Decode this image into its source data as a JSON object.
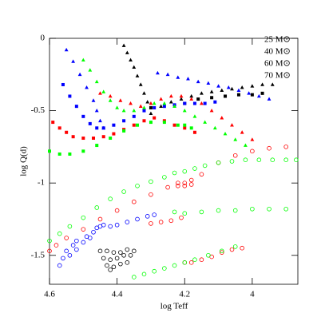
{
  "chart_data": {
    "type": "scatter",
    "xlabel": "log Teff",
    "ylabel": "log Q(d)",
    "xlim": [
      4.6,
      3.865
    ],
    "ylim": [
      -1.7,
      0
    ],
    "xticks": [
      4.6,
      4.4,
      4.2,
      4
    ],
    "yticks": [
      0,
      -0.5,
      -1,
      -1.5
    ],
    "legend": "upper right",
    "series": [
      {
        "name": "25 M⊙",
        "color": "#000000",
        "markers": {
          "triangle": {
            "x": [
              4.38,
              4.37,
              4.36,
              4.35,
              4.34,
              4.33,
              4.32,
              4.31,
              4.3,
              4.27,
              4.24,
              4.21,
              4.18,
              4.15,
              4.12,
              4.09,
              4.06,
              4.03,
              4.0,
              3.97,
              3.94
            ],
            "y": [
              -0.05,
              -0.1,
              -0.15,
              -0.2,
              -0.26,
              -0.32,
              -0.38,
              -0.44,
              -0.52,
              -0.47,
              -0.44,
              -0.42,
              -0.4,
              -0.38,
              -0.37,
              -0.36,
              -0.35,
              -0.34,
              -0.33,
              -0.32,
              -0.32
            ]
          },
          "square": {
            "x": [
              4.3,
              4.2,
              4.16,
              4.12,
              4.08,
              4.04,
              4.0,
              3.97
            ],
            "y": [
              -0.48,
              -0.45,
              -0.42,
              -0.41,
              -0.4,
              -0.39,
              -0.39,
              -0.38
            ]
          },
          "circle": {
            "x": [
              4.45,
              4.43,
              4.41,
              4.39,
              4.37,
              4.35,
              4.44,
              4.42,
              4.4,
              4.38,
              4.36,
              4.43,
              4.41,
              4.39,
              4.37,
              4.42
            ],
            "y": [
              -1.47,
              -1.47,
              -1.48,
              -1.48,
              -1.46,
              -1.47,
              -1.52,
              -1.53,
              -1.52,
              -1.5,
              -1.5,
              -1.57,
              -1.58,
              -1.56,
              -1.55,
              -1.6
            ]
          }
        }
      },
      {
        "name": "40 M⊙",
        "color": "#0000ff",
        "markers": {
          "triangle": {
            "x": [
              4.55,
              4.53,
              4.51,
              4.49,
              4.47,
              4.46,
              4.45,
              4.44,
              4.28,
              4.25,
              4.22,
              4.19,
              4.16,
              4.13,
              4.1,
              4.07,
              4.04,
              4.01,
              3.98,
              3.95
            ],
            "y": [
              -0.08,
              -0.16,
              -0.25,
              -0.34,
              -0.43,
              -0.5,
              -0.57,
              -0.62,
              -0.24,
              -0.25,
              -0.27,
              -0.28,
              -0.3,
              -0.31,
              -0.33,
              -0.34,
              -0.36,
              -0.38,
              -0.4,
              -0.42
            ]
          },
          "square": {
            "x": [
              4.56,
              4.54,
              4.52,
              4.5,
              4.48,
              4.46,
              4.44,
              4.41,
              4.38,
              4.35,
              4.32,
              4.29,
              4.26,
              4.23,
              4.2,
              4.17,
              4.14,
              4.11
            ],
            "y": [
              -0.32,
              -0.4,
              -0.47,
              -0.54,
              -0.59,
              -0.62,
              -0.62,
              -0.6,
              -0.57,
              -0.54,
              -0.5,
              -0.48,
              -0.47,
              -0.46,
              -0.45,
              -0.45,
              -0.45,
              -0.44
            ]
          },
          "circle": {
            "x": [
              4.57,
              4.56,
              4.55,
              4.53,
              4.52,
              4.54,
              4.52,
              4.5,
              4.49,
              4.47,
              4.46,
              4.48,
              4.45,
              4.44,
              4.42,
              4.4,
              4.37,
              4.34,
              4.31,
              4.29
            ],
            "y": [
              -1.57,
              -1.52,
              -1.47,
              -1.43,
              -1.4,
              -1.5,
              -1.46,
              -1.41,
              -1.37,
              -1.34,
              -1.31,
              -1.38,
              -1.3,
              -1.29,
              -1.3,
              -1.29,
              -1.27,
              -1.25,
              -1.23,
              -1.22
            ]
          }
        }
      },
      {
        "name": "60 M⊙",
        "color": "#ff0000",
        "markers": {
          "triangle": {
            "x": [
              4.45,
              4.42,
              4.39,
              4.36,
              4.33,
              4.3,
              4.27,
              4.24,
              4.21,
              4.18,
              4.15,
              4.12,
              4.09,
              4.06,
              4.03,
              4.0
            ],
            "y": [
              -0.38,
              -0.4,
              -0.43,
              -0.45,
              -0.47,
              -0.45,
              -0.42,
              -0.4,
              -0.4,
              -0.42,
              -0.45,
              -0.5,
              -0.55,
              -0.6,
              -0.65,
              -0.7
            ]
          },
          "square": {
            "x": [
              4.59,
              4.57,
              4.55,
              4.53,
              4.5,
              4.47,
              4.44,
              4.41,
              4.38,
              4.35,
              4.32,
              4.29,
              4.26,
              4.23,
              4.2,
              4.17
            ],
            "y": [
              -0.58,
              -0.62,
              -0.65,
              -0.68,
              -0.69,
              -0.69,
              -0.68,
              -0.66,
              -0.63,
              -0.6,
              -0.57,
              -0.55,
              -0.57,
              -0.6,
              -0.62,
              -0.65
            ]
          },
          "circle": {
            "x": [
              4.6,
              4.58,
              4.55,
              4.5,
              4.45,
              4.4,
              4.35,
              4.3,
              4.25,
              4.22,
              4.2,
              4.18,
              4.15,
              4.1,
              4.05,
              4.0,
              3.95,
              3.9,
              4.22,
              4.2,
              4.18,
              4.3,
              4.27,
              4.24,
              4.21,
              4.2,
              4.18,
              4.15,
              4.12,
              4.09,
              4.06,
              4.03
            ],
            "y": [
              -1.47,
              -1.43,
              -1.38,
              -1.32,
              -1.25,
              -1.19,
              -1.13,
              -1.08,
              -1.03,
              -1.0,
              -1.0,
              -0.98,
              -0.94,
              -0.86,
              -0.81,
              -0.78,
              -0.76,
              -0.75,
              -1.02,
              -1.02,
              -1.01,
              -1.28,
              -1.27,
              -1.26,
              -1.24,
              -1.55,
              -1.55,
              -1.53,
              -1.51,
              -1.48,
              -1.46,
              -1.45
            ]
          }
        }
      },
      {
        "name": "70 M⊙",
        "color": "#00ff00",
        "markers": {
          "triangle": {
            "x": [
              4.5,
              4.48,
              4.46,
              4.44,
              4.42,
              4.4,
              4.38,
              4.35,
              4.32,
              4.29,
              4.26,
              4.23,
              4.2,
              4.17,
              4.14,
              4.11,
              4.08,
              4.05,
              4.02
            ],
            "y": [
              -0.15,
              -0.22,
              -0.3,
              -0.37,
              -0.43,
              -0.48,
              -0.5,
              -0.5,
              -0.48,
              -0.45,
              -0.45,
              -0.47,
              -0.5,
              -0.54,
              -0.58,
              -0.62,
              -0.66,
              -0.7,
              -0.74
            ]
          },
          "square": {
            "x": [
              4.6,
              4.57,
              4.54,
              4.5,
              4.46,
              4.42,
              4.38,
              4.34,
              4.3,
              4.26,
              4.22,
              4.2,
              4.18
            ],
            "y": [
              -0.78,
              -0.8,
              -0.8,
              -0.78,
              -0.74,
              -0.69,
              -0.64,
              -0.6,
              -0.58,
              -0.58,
              -0.6,
              -0.6,
              -0.62
            ]
          },
          "circle": {
            "x": [
              4.6,
              4.57,
              4.54,
              4.5,
              4.46,
              4.42,
              4.38,
              4.34,
              4.3,
              4.26,
              4.23,
              4.2,
              4.17,
              4.14,
              4.1,
              4.06,
              4.02,
              3.98,
              3.94,
              3.9,
              3.87,
              4.23,
              4.2,
              4.15,
              4.1,
              4.05,
              4.0,
              3.95,
              3.9,
              4.35,
              4.32,
              4.29,
              4.26,
              4.23,
              4.2,
              4.17,
              4.13,
              4.09,
              4.05
            ],
            "y": [
              -1.4,
              -1.35,
              -1.3,
              -1.24,
              -1.17,
              -1.11,
              -1.06,
              -1.02,
              -0.99,
              -0.96,
              -0.93,
              -0.92,
              -0.9,
              -0.88,
              -0.86,
              -0.85,
              -0.84,
              -0.84,
              -0.84,
              -0.84,
              -0.84,
              -1.2,
              -1.21,
              -1.2,
              -1.19,
              -1.19,
              -1.18,
              -1.18,
              -1.18,
              -1.65,
              -1.63,
              -1.61,
              -1.59,
              -1.57,
              -1.55,
              -1.53,
              -1.5,
              -1.47,
              -1.44
            ]
          }
        }
      }
    ]
  }
}
